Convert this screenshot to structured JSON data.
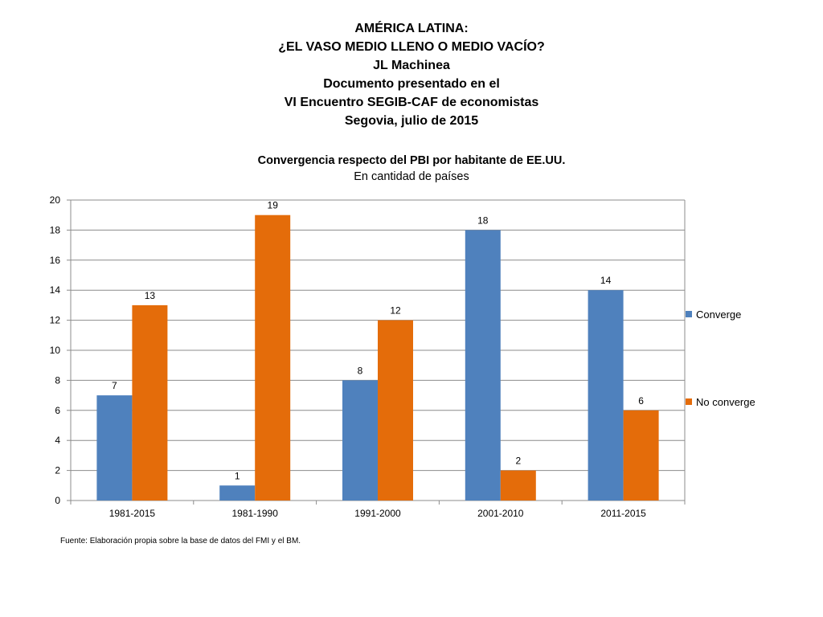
{
  "heading": {
    "lines": [
      "AMÉRICA LATINA:",
      "¿EL VASO MEDIO LLENO O MEDIO VACÍO?",
      "JL Machinea",
      "Documento presentado en el",
      "VI Encuentro SEGIB-CAF de economistas",
      "Segovia, julio de 2015"
    ]
  },
  "chart_data": {
    "type": "bar",
    "title": "Convergencia respecto del PBI por habitante de EE.UU.",
    "subtitle": "En cantidad de países",
    "categories": [
      "1981-2015",
      "1981-1990",
      "1991-2000",
      "2001-2010",
      "2011-2015"
    ],
    "series": [
      {
        "name": "Converge",
        "values": [
          7,
          1,
          8,
          18,
          14
        ],
        "color": "#4F81BD"
      },
      {
        "name": "No converge",
        "values": [
          13,
          19,
          12,
          2,
          6
        ],
        "color": "#E46C0A"
      }
    ],
    "ylim": [
      0,
      20
    ],
    "yticks": [
      0,
      2,
      4,
      6,
      8,
      10,
      12,
      14,
      16,
      18,
      20
    ],
    "grid": true,
    "legend_position": "right",
    "data_labels": true
  },
  "source_note": "Fuente: Elaboración propia sobre la base de datos del FMI y el BM."
}
